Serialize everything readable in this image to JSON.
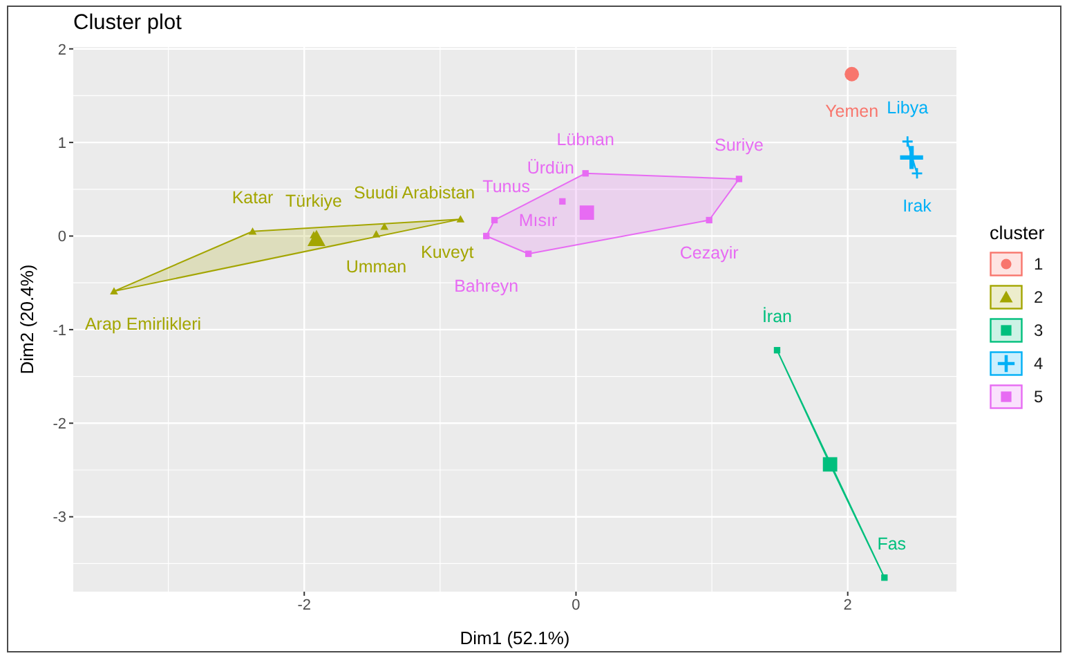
{
  "chart_data": {
    "type": "bubble",
    "title": "Cluster plot",
    "xlabel": "Dim1 (52.1%)",
    "ylabel": "Dim2 (20.4%)",
    "legend_title": "cluster",
    "legend": "right",
    "grid": true,
    "xlim": [
      -3.7,
      2.8
    ],
    "ylim": [
      -3.8,
      2.02
    ],
    "xticks": [
      -2,
      0,
      2
    ],
    "yticks": [
      -3,
      -2,
      -1,
      0,
      1,
      2
    ],
    "series": [
      {
        "name": "1",
        "color": "#f8766d",
        "marker": "circle",
        "x": [
          2.03
        ],
        "values": [
          1.73
        ],
        "sizes": [
          1
        ],
        "value_labels": [
          "Yemen"
        ]
      },
      {
        "name": "2",
        "color": "#a3a500",
        "marker": "triangle",
        "x": [
          -3.4,
          -2.38,
          -1.93,
          -1.41,
          -1.47,
          -0.85,
          -1.91
        ],
        "values": [
          -0.59,
          0.05,
          0.01,
          0.1,
          0.02,
          0.18,
          -0.03
        ],
        "sizes": [
          0.2,
          0.2,
          0.2,
          0.2,
          0.2,
          0.2,
          1
        ],
        "value_labels": [
          "Arap Emirlikleri",
          "Katar",
          "Türkiye",
          "Suudi Arabistan",
          "Umman",
          "Kuveyt",
          null
        ]
      },
      {
        "name": "3",
        "color": "#00bf7d",
        "marker": "square",
        "x": [
          1.48,
          2.27,
          1.87
        ],
        "values": [
          -1.22,
          -3.65,
          -2.44
        ],
        "sizes": [
          0.2,
          0.2,
          1
        ],
        "value_labels": [
          "İran",
          "Fas",
          null
        ]
      },
      {
        "name": "4",
        "color": "#00b0f6",
        "marker": "cross",
        "x": [
          2.44,
          2.51,
          2.47
        ],
        "values": [
          1.01,
          0.67,
          0.84
        ],
        "sizes": [
          0.2,
          0.2,
          1
        ],
        "value_labels": [
          "Libya",
          "Irak",
          null
        ]
      },
      {
        "name": "5",
        "color": "#e76bf3",
        "marker": "square",
        "x": [
          0.07,
          -0.1,
          1.2,
          0.98,
          -0.6,
          -0.66,
          -0.35,
          0.08
        ],
        "values": [
          0.67,
          0.37,
          0.61,
          0.17,
          0.17,
          0.0,
          -0.19,
          0.25
        ],
        "sizes": [
          0.2,
          0.2,
          0.2,
          0.2,
          0.2,
          0.2,
          0.2,
          1
        ],
        "value_labels": [
          "Lübnan",
          "Ürdün",
          "Suriye",
          "Cezayir",
          "Tunus",
          "Bahreyn",
          "Mısır",
          null
        ]
      }
    ]
  }
}
